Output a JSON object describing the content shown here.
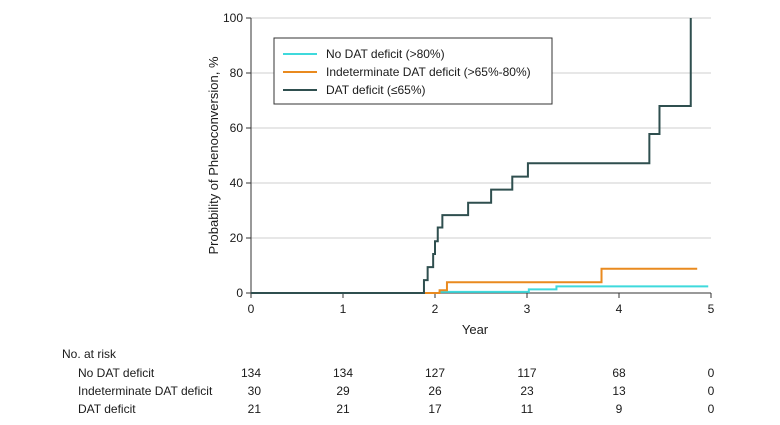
{
  "chart_data": {
    "type": "line",
    "chart_style": "step",
    "xlabel": "Year",
    "ylabel": "Probability of Phenoconversion, %",
    "xlim": [
      0,
      5
    ],
    "ylim": [
      0,
      100
    ],
    "x_ticks": [
      "0",
      "1",
      "2",
      "3",
      "4",
      "5"
    ],
    "y_ticks": [
      "0",
      "20",
      "40",
      "60",
      "80",
      "100"
    ],
    "legend_position": "top-left",
    "series": [
      {
        "name": "No DAT deficit (>80%)",
        "color": "#3fd9dc",
        "points": [
          [
            0,
            0
          ],
          [
            1.9,
            0
          ],
          [
            2.05,
            0.4
          ],
          [
            3.0,
            0.4
          ],
          [
            3.02,
            1.3
          ],
          [
            3.3,
            1.3
          ],
          [
            3.32,
            2.4
          ],
          [
            4.97,
            2.4
          ]
        ]
      },
      {
        "name": "Indeterminate DAT deficit (>65%-80%)",
        "color": "#e98a1f",
        "points": [
          [
            0,
            0
          ],
          [
            1.95,
            0
          ],
          [
            2.05,
            1.0
          ],
          [
            2.12,
            1.0
          ],
          [
            2.13,
            3.9
          ],
          [
            3.8,
            3.9
          ],
          [
            3.81,
            8.8
          ],
          [
            4.85,
            8.8
          ]
        ]
      },
      {
        "name": "DAT deficit (≤65%)",
        "color": "#2f4f4f",
        "points": [
          [
            0,
            0
          ],
          [
            1.87,
            0
          ],
          [
            1.88,
            4.7
          ],
          [
            1.91,
            4.7
          ],
          [
            1.92,
            9.4
          ],
          [
            1.97,
            9.4
          ],
          [
            1.98,
            14.2
          ],
          [
            1.99,
            14.2
          ],
          [
            2.0,
            18.8
          ],
          [
            2.02,
            18.8
          ],
          [
            2.03,
            23.8
          ],
          [
            2.07,
            23.8
          ],
          [
            2.08,
            28.3
          ],
          [
            2.35,
            28.3
          ],
          [
            2.36,
            32.8
          ],
          [
            2.6,
            32.8
          ],
          [
            2.61,
            37.6
          ],
          [
            2.83,
            37.6
          ],
          [
            2.84,
            42.3
          ],
          [
            3.0,
            42.3
          ],
          [
            3.01,
            47.2
          ],
          [
            4.32,
            47.2
          ],
          [
            4.33,
            57.8
          ],
          [
            4.43,
            57.8
          ],
          [
            4.44,
            68.0
          ],
          [
            4.77,
            68.0
          ],
          [
            4.78,
            100
          ]
        ]
      }
    ]
  },
  "risk_table": {
    "title": "No. at risk",
    "rows": [
      {
        "label": "No DAT deficit",
        "values": [
          "134",
          "134",
          "127",
          "117",
          "68",
          "0"
        ]
      },
      {
        "label": "Indeterminate DAT deficit",
        "values": [
          "30",
          "29",
          "26",
          "23",
          "13",
          "0"
        ]
      },
      {
        "label": "DAT deficit",
        "values": [
          "21",
          "21",
          "17",
          "11",
          "9",
          "0"
        ]
      }
    ]
  }
}
